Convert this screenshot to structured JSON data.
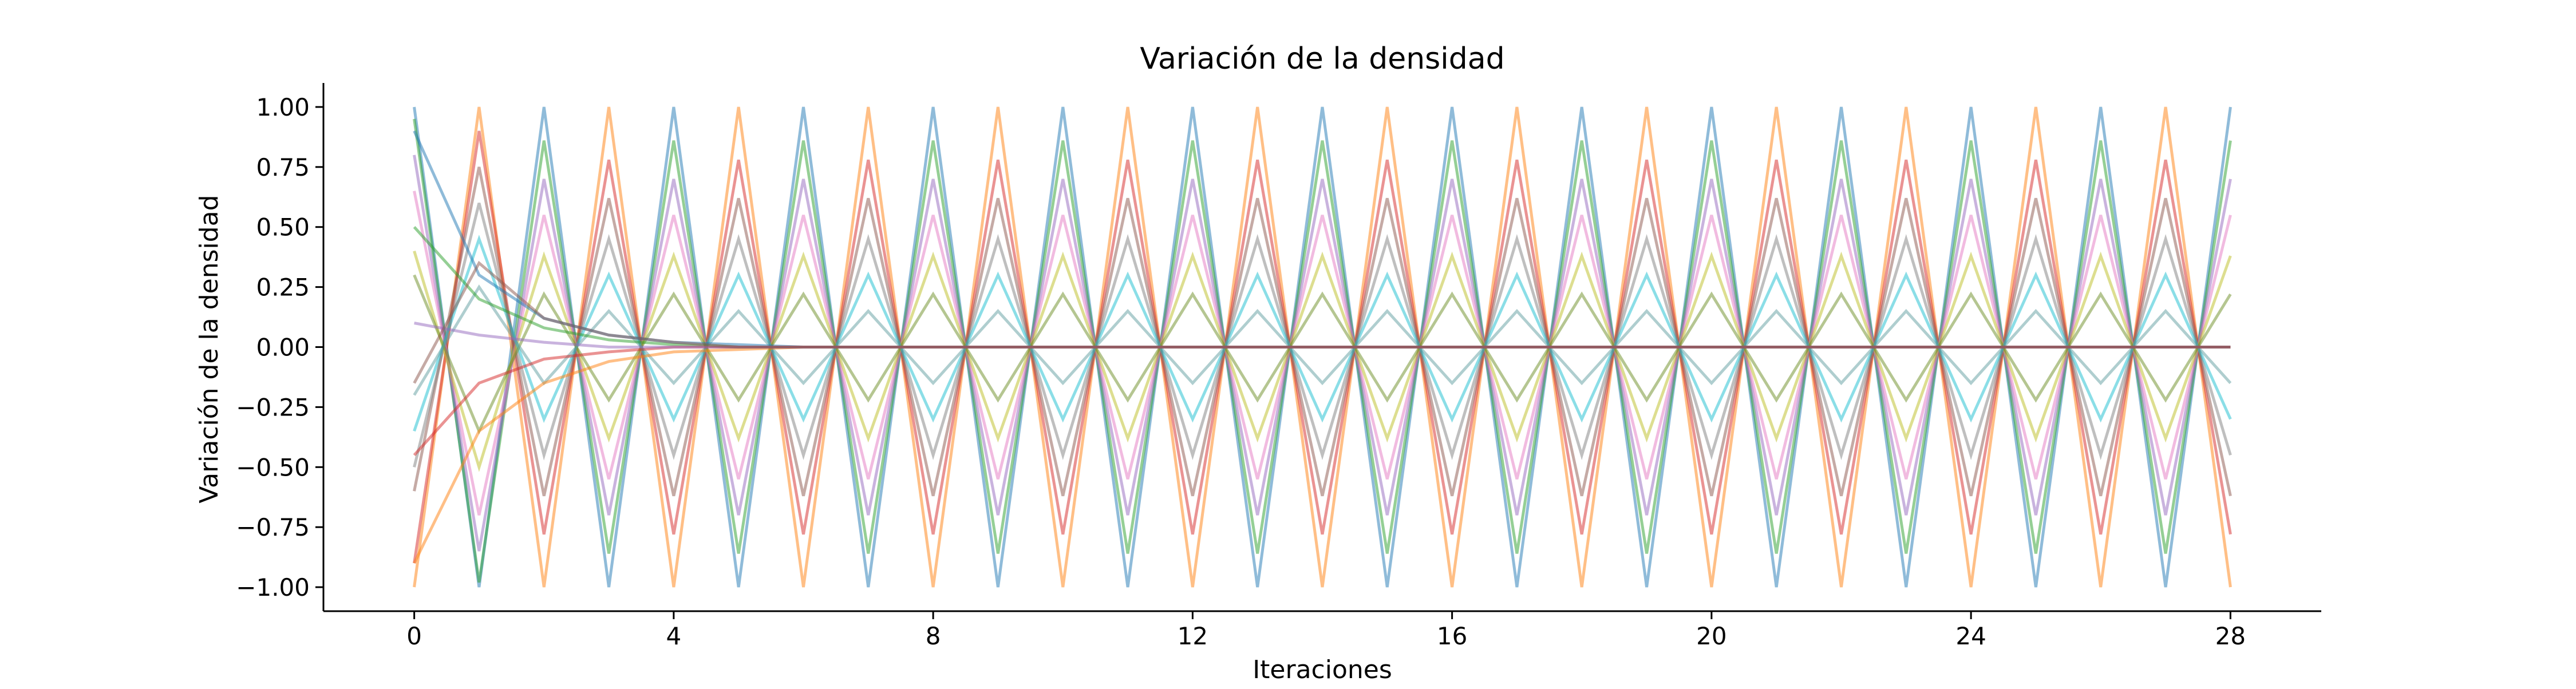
{
  "chart_data": {
    "type": "line",
    "title": "Variación de la densidad",
    "xlabel": "Iteraciones",
    "ylabel": "Variación de la densidad",
    "xlim": [
      -1.4,
      29.4
    ],
    "ylim": [
      -1.1,
      1.1
    ],
    "x_ticks": [
      0,
      4,
      8,
      12,
      16,
      20,
      24,
      28
    ],
    "x_tick_labels": [
      "0",
      "4",
      "8",
      "12",
      "16",
      "20",
      "24",
      "28"
    ],
    "y_ticks": [
      1.0,
      0.75,
      0.5,
      0.25,
      0.0,
      -0.25,
      -0.5,
      -0.75,
      -1.0
    ],
    "y_tick_labels": [
      "1.00",
      "0.75",
      "0.50",
      "0.25",
      "0.00",
      "−0.25",
      "−0.50",
      "−0.75",
      "−1.00"
    ],
    "grid": false,
    "legend": "none",
    "x": [
      0,
      1,
      2,
      3,
      4,
      5,
      6,
      7,
      8,
      9,
      10,
      11,
      12,
      13,
      14,
      15,
      16,
      17,
      18,
      19,
      20,
      21,
      22,
      23,
      24,
      25,
      26,
      27,
      28
    ],
    "series": [
      {
        "values": [
          1.0,
          -1.0,
          1.0,
          -1.0,
          1.0,
          -1.0,
          1.0,
          -1.0,
          1.0,
          -1.0,
          1.0,
          -1.0,
          1.0,
          -1.0,
          1.0,
          -1.0,
          1.0,
          -1.0,
          1.0,
          -1.0,
          1.0,
          -1.0,
          1.0,
          -1.0,
          1.0,
          -1.0,
          1.0,
          -1.0,
          1.0
        ]
      },
      {
        "values": [
          -1.0,
          1.0,
          -1.0,
          1.0,
          -1.0,
          1.0,
          -1.0,
          1.0,
          -1.0,
          1.0,
          -1.0,
          1.0,
          -1.0,
          1.0,
          -1.0,
          1.0,
          -1.0,
          1.0,
          -1.0,
          1.0,
          -1.0,
          1.0,
          -1.0,
          1.0,
          -1.0,
          1.0,
          -1.0,
          1.0,
          -1.0
        ]
      },
      {
        "values": [
          0.95,
          -0.98,
          0.86,
          -0.86,
          0.86,
          -0.86,
          0.86,
          -0.86,
          0.86,
          -0.86,
          0.86,
          -0.86,
          0.86,
          -0.86,
          0.86,
          -0.86,
          0.86,
          -0.86,
          0.86,
          -0.86,
          0.86,
          -0.86,
          0.86,
          -0.86,
          0.86,
          -0.86,
          0.86,
          -0.86,
          0.86
        ]
      },
      {
        "values": [
          -0.9,
          0.9,
          -0.78,
          0.78,
          -0.78,
          0.78,
          -0.78,
          0.78,
          -0.78,
          0.78,
          -0.78,
          0.78,
          -0.78,
          0.78,
          -0.78,
          0.78,
          -0.78,
          0.78,
          -0.78,
          0.78,
          -0.78,
          0.78,
          -0.78,
          0.78,
          -0.78,
          0.78,
          -0.78,
          0.78,
          -0.78
        ]
      },
      {
        "values": [
          0.8,
          -0.85,
          0.7,
          -0.7,
          0.7,
          -0.7,
          0.7,
          -0.7,
          0.7,
          -0.7,
          0.7,
          -0.7,
          0.7,
          -0.7,
          0.7,
          -0.7,
          0.7,
          -0.7,
          0.7,
          -0.7,
          0.7,
          -0.7,
          0.7,
          -0.7,
          0.7,
          -0.7,
          0.7,
          -0.7,
          0.7
        ]
      },
      {
        "values": [
          -0.6,
          0.75,
          -0.62,
          0.62,
          -0.62,
          0.62,
          -0.62,
          0.62,
          -0.62,
          0.62,
          -0.62,
          0.62,
          -0.62,
          0.62,
          -0.62,
          0.62,
          -0.62,
          0.62,
          -0.62,
          0.62,
          -0.62,
          0.62,
          -0.62,
          0.62,
          -0.62,
          0.62,
          -0.62,
          0.62,
          -0.62
        ]
      },
      {
        "values": [
          0.65,
          -0.7,
          0.55,
          -0.55,
          0.55,
          -0.55,
          0.55,
          -0.55,
          0.55,
          -0.55,
          0.55,
          -0.55,
          0.55,
          -0.55,
          0.55,
          -0.55,
          0.55,
          -0.55,
          0.55,
          -0.55,
          0.55,
          -0.55,
          0.55,
          -0.55,
          0.55,
          -0.55,
          0.55,
          -0.55,
          0.55
        ]
      },
      {
        "values": [
          -0.5,
          0.6,
          -0.45,
          0.45,
          -0.45,
          0.45,
          -0.45,
          0.45,
          -0.45,
          0.45,
          -0.45,
          0.45,
          -0.45,
          0.45,
          -0.45,
          0.45,
          -0.45,
          0.45,
          -0.45,
          0.45,
          -0.45,
          0.45,
          -0.45,
          0.45,
          -0.45,
          0.45,
          -0.45,
          0.45,
          -0.45
        ]
      },
      {
        "values": [
          0.4,
          -0.5,
          0.38,
          -0.38,
          0.38,
          -0.38,
          0.38,
          -0.38,
          0.38,
          -0.38,
          0.38,
          -0.38,
          0.38,
          -0.38,
          0.38,
          -0.38,
          0.38,
          -0.38,
          0.38,
          -0.38,
          0.38,
          -0.38,
          0.38,
          -0.38,
          0.38,
          -0.38,
          0.38,
          -0.38,
          0.38
        ]
      },
      {
        "values": [
          -0.35,
          0.45,
          -0.3,
          0.3,
          -0.3,
          0.3,
          -0.3,
          0.3,
          -0.3,
          0.3,
          -0.3,
          0.3,
          -0.3,
          0.3,
          -0.3,
          0.3,
          -0.3,
          0.3,
          -0.3,
          0.3,
          -0.3,
          0.3,
          -0.3,
          0.3,
          -0.3,
          0.3,
          -0.3,
          0.3,
          -0.3
        ]
      },
      {
        "values": [
          0.3,
          -0.35,
          0.22,
          -0.22,
          0.22,
          -0.22,
          0.22,
          -0.22,
          0.22,
          -0.22,
          0.22,
          -0.22,
          0.22,
          -0.22,
          0.22,
          -0.22,
          0.22,
          -0.22,
          0.22,
          -0.22,
          0.22,
          -0.22,
          0.22,
          -0.22,
          0.22,
          -0.22,
          0.22,
          -0.22,
          0.22
        ]
      },
      {
        "values": [
          -0.2,
          0.25,
          -0.15,
          0.15,
          -0.15,
          0.15,
          -0.15,
          0.15,
          -0.15,
          0.15,
          -0.15,
          0.15,
          -0.15,
          0.15,
          -0.15,
          0.15,
          -0.15,
          0.15,
          -0.15,
          0.15,
          -0.15,
          0.15,
          -0.15,
          0.15,
          -0.15,
          0.15,
          -0.15,
          0.15,
          -0.15
        ]
      },
      {
        "values": [
          0.9,
          0.3,
          0.12,
          0.05,
          0.02,
          0.01,
          0.0,
          0.0,
          0.0,
          0.0,
          0.0,
          0.0,
          0.0,
          0.0,
          0.0,
          0.0,
          0.0,
          0.0,
          0.0,
          0.0,
          0.0,
          0.0,
          0.0,
          0.0,
          0.0,
          0.0,
          0.0,
          0.0,
          0.0
        ]
      },
      {
        "values": [
          -0.9,
          -0.35,
          -0.15,
          -0.06,
          -0.02,
          -0.01,
          0.0,
          0.0,
          0.0,
          0.0,
          0.0,
          0.0,
          0.0,
          0.0,
          0.0,
          0.0,
          0.0,
          0.0,
          0.0,
          0.0,
          0.0,
          0.0,
          0.0,
          0.0,
          0.0,
          0.0,
          0.0,
          0.0,
          0.0
        ]
      },
      {
        "values": [
          0.5,
          0.2,
          0.08,
          0.03,
          0.01,
          0.0,
          0.0,
          0.0,
          0.0,
          0.0,
          0.0,
          0.0,
          0.0,
          0.0,
          0.0,
          0.0,
          0.0,
          0.0,
          0.0,
          0.0,
          0.0,
          0.0,
          0.0,
          0.0,
          0.0,
          0.0,
          0.0,
          0.0,
          0.0
        ]
      },
      {
        "values": [
          -0.45,
          -0.15,
          -0.05,
          -0.02,
          0.0,
          0.0,
          0.0,
          0.0,
          0.0,
          0.0,
          0.0,
          0.0,
          0.0,
          0.0,
          0.0,
          0.0,
          0.0,
          0.0,
          0.0,
          0.0,
          0.0,
          0.0,
          0.0,
          0.0,
          0.0,
          0.0,
          0.0,
          0.0,
          0.0
        ]
      },
      {
        "values": [
          0.1,
          0.05,
          0.02,
          0.0,
          0.0,
          0.0,
          0.0,
          0.0,
          0.0,
          0.0,
          0.0,
          0.0,
          0.0,
          0.0,
          0.0,
          0.0,
          0.0,
          0.0,
          0.0,
          0.0,
          0.0,
          0.0,
          0.0,
          0.0,
          0.0,
          0.0,
          0.0,
          0.0,
          0.0
        ]
      },
      {
        "values": [
          -0.15,
          0.35,
          0.12,
          0.05,
          0.02,
          0.0,
          0.0,
          0.0,
          0.0,
          0.0,
          0.0,
          0.0,
          0.0,
          0.0,
          0.0,
          0.0,
          0.0,
          0.0,
          0.0,
          0.0,
          0.0,
          0.0,
          0.0,
          0.0,
          0.0,
          0.0,
          0.0,
          0.0,
          0.0
        ]
      }
    ],
    "colors": [
      "#1f77b4",
      "#ff7f0e",
      "#2ca02c",
      "#d62728",
      "#9467bd",
      "#8c564b",
      "#e377c2",
      "#7f7f7f",
      "#bcbd22",
      "#17becf",
      "#6b8e23",
      "#5f9ea0"
    ]
  }
}
